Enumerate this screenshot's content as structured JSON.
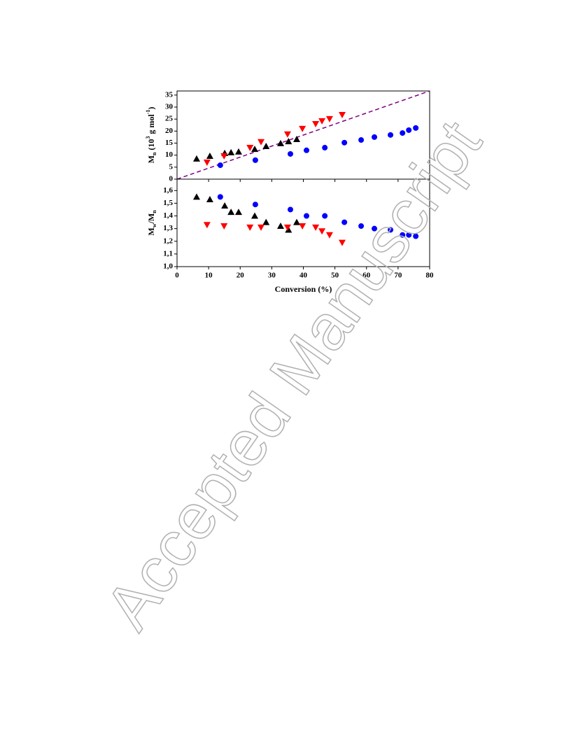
{
  "chart_data": [
    {
      "type": "scatter",
      "ylabel": [
        "M",
        "n",
        " (10",
        "3",
        " g mol",
        "-1",
        ")"
      ],
      "xlim": [
        0,
        80
      ],
      "ylim": [
        0,
        36.7
      ],
      "yticks": [
        0,
        5,
        10,
        15,
        20,
        25,
        30,
        35
      ],
      "series": [
        {
          "color": "#000000",
          "marker": "triangle-up",
          "x": [
            6.2,
            10.4,
            15.1,
            17.1,
            19.5,
            24.6,
            28.2,
            32.8,
            35.3,
            37.9
          ],
          "values": [
            8.5,
            9.6,
            10.8,
            11.1,
            11.4,
            12.5,
            13.7,
            14.9,
            15.7,
            16.6
          ]
        },
        {
          "color": "#ff0000",
          "marker": "triangle-down",
          "x": [
            9.5,
            14.9,
            23.1,
            26.6,
            35.0,
            39.7,
            43.9,
            45.9,
            48.3,
            52.3
          ],
          "values": [
            7.0,
            9.6,
            13.1,
            15.5,
            18.7,
            21.0,
            23.0,
            24.2,
            25.1,
            26.8
          ]
        },
        {
          "color": "#0000ff",
          "marker": "circle",
          "x": [
            13.7,
            24.8,
            35.9,
            41.0,
            46.8,
            53.0,
            58.3,
            62.5,
            67.6,
            71.4,
            73.4,
            75.6
          ],
          "values": [
            5.8,
            7.9,
            10.5,
            12.0,
            13.1,
            15.2,
            16.3,
            17.5,
            18.4,
            19.2,
            20.4,
            21.3
          ]
        }
      ],
      "line": {
        "color": "#800080",
        "style": "dashed",
        "x": [
          0,
          80
        ],
        "values": [
          0,
          36.7
        ]
      }
    },
    {
      "type": "scatter",
      "ylabel": [
        "M",
        "w",
        "/M",
        "n"
      ],
      "xlabel": "Conversion (%)",
      "xlim": [
        0,
        80
      ],
      "ylim": [
        1.0,
        1.69
      ],
      "xticks": [
        0,
        10,
        20,
        30,
        40,
        50,
        60,
        70,
        80
      ],
      "yticks": [
        {
          "value": 1.0,
          "label": "1,0"
        },
        {
          "value": 1.1,
          "label": "1,1"
        },
        {
          "value": 1.2,
          "label": "1,2"
        },
        {
          "value": 1.3,
          "label": "1,3"
        },
        {
          "value": 1.4,
          "label": "1,4"
        },
        {
          "value": 1.5,
          "label": "1,5"
        },
        {
          "value": 1.6,
          "label": "1,6"
        }
      ],
      "series": [
        {
          "color": "#000000",
          "marker": "triangle-up",
          "x": [
            6.2,
            10.4,
            15.1,
            17.1,
            19.5,
            24.6,
            28.2,
            32.8,
            35.3,
            37.9
          ],
          "values": [
            1.55,
            1.53,
            1.48,
            1.43,
            1.43,
            1.4,
            1.35,
            1.32,
            1.29,
            1.35
          ]
        },
        {
          "color": "#ff0000",
          "marker": "triangle-down",
          "x": [
            9.5,
            14.9,
            23.1,
            26.6,
            35.0,
            39.7,
            43.9,
            45.9,
            48.3,
            52.3
          ],
          "values": [
            1.33,
            1.32,
            1.31,
            1.31,
            1.31,
            1.32,
            1.31,
            1.28,
            1.25,
            1.19
          ]
        },
        {
          "color": "#0000ff",
          "marker": "circle",
          "x": [
            13.7,
            24.8,
            35.9,
            41.0,
            46.8,
            53.0,
            58.3,
            62.5,
            67.6,
            71.4,
            73.4,
            75.6
          ],
          "values": [
            1.55,
            1.49,
            1.45,
            1.4,
            1.4,
            1.35,
            1.32,
            1.3,
            1.29,
            1.25,
            1.25,
            1.24
          ]
        }
      ]
    }
  ],
  "watermark": "Accepted Manuscript"
}
